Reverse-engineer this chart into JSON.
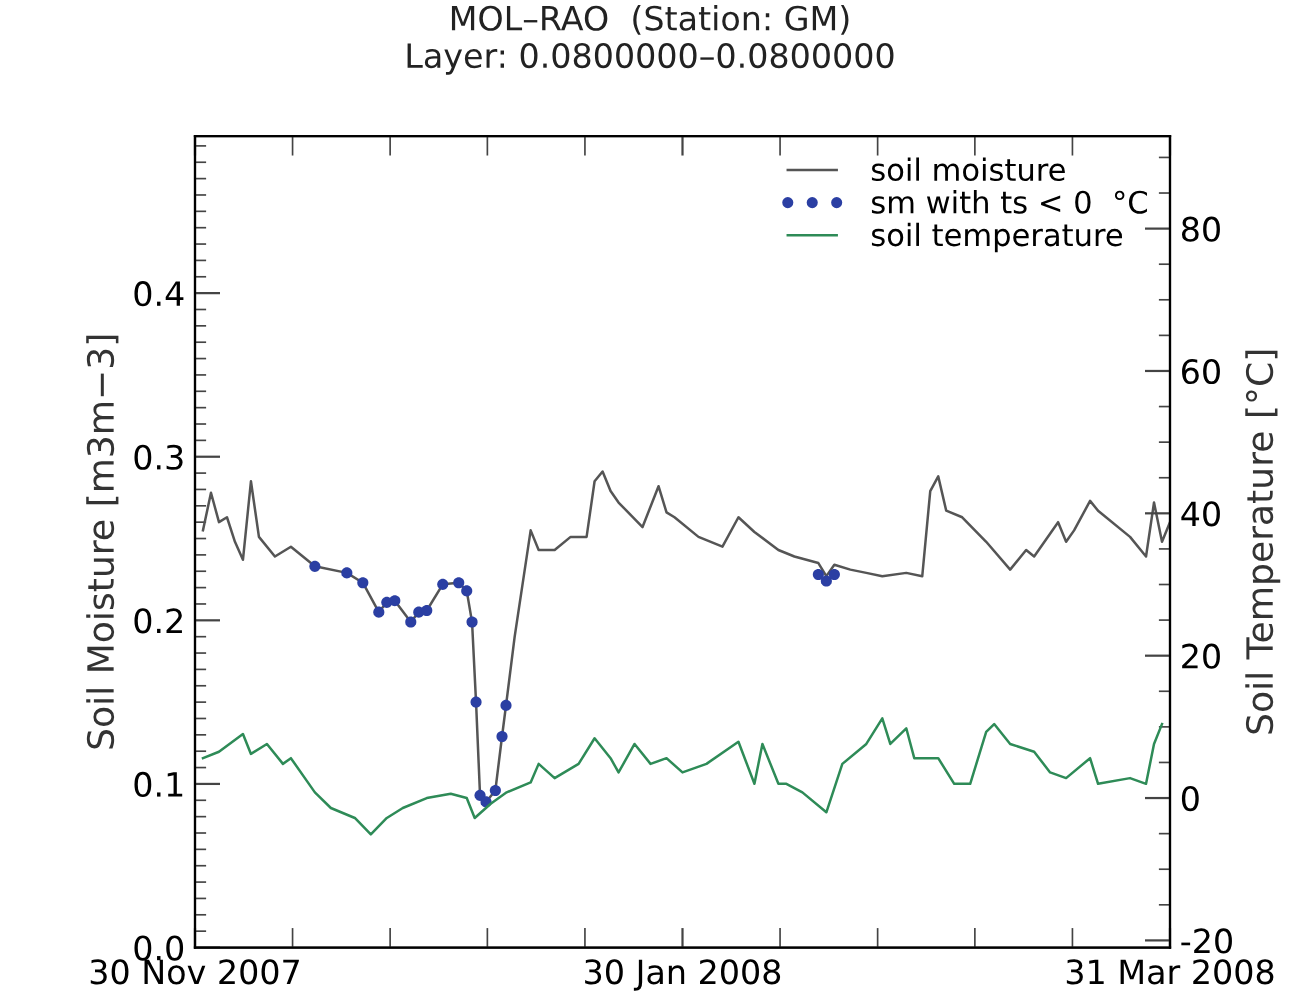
{
  "chart_data": {
    "type": "line",
    "title": "MOL–RAO  (Station: GM)",
    "subtitle": "Layer: 0.0800000–0.0800000",
    "ylabel": "Soil Moisture [m3m−3]",
    "y2label": "Soil Temperature [°C]",
    "xlim": [
      "2007-11-30",
      "2008-03-31"
    ],
    "xticks": [
      {
        "value": "2007-11-30",
        "label": "30 Nov 2007"
      },
      {
        "value": "2007-12-12T05:00",
        "label": null
      },
      {
        "value": "2007-12-24T10:00",
        "label": null
      },
      {
        "value": "2008-01-05T14:00",
        "label": null
      },
      {
        "value": "2008-01-17T19:00",
        "label": null
      },
      {
        "value": "2008-01-30",
        "label": "30 Jan 2008"
      },
      {
        "value": "2008-02-11T05:00",
        "label": null
      },
      {
        "value": "2008-02-23T10:00",
        "label": null
      },
      {
        "value": "2008-03-06T14:00",
        "label": null
      },
      {
        "value": "2008-03-18T19:00",
        "label": null
      },
      {
        "value": "2008-03-31",
        "label": "31 Mar 2008"
      }
    ],
    "ylim": [
      0,
      0.496
    ],
    "yticks": [
      {
        "value": 0,
        "label": "0.0"
      },
      {
        "value": 0.1,
        "label": "0.1"
      },
      {
        "value": 0.2,
        "label": "0.2"
      },
      {
        "value": 0.3,
        "label": "0.3"
      },
      {
        "value": 0.4,
        "label": "0.4"
      },
      {
        "value": 0.01,
        "label": null
      },
      {
        "value": 0.02,
        "label": null
      },
      {
        "value": 0.03,
        "label": null
      },
      {
        "value": 0.04,
        "label": null
      },
      {
        "value": 0.05,
        "label": null
      },
      {
        "value": 0.06,
        "label": null
      },
      {
        "value": 0.07,
        "label": null
      },
      {
        "value": 0.08,
        "label": null
      },
      {
        "value": 0.09,
        "label": null
      },
      {
        "value": 0.11,
        "label": null
      },
      {
        "value": 0.12,
        "label": null
      },
      {
        "value": 0.13,
        "label": null
      },
      {
        "value": 0.14,
        "label": null
      },
      {
        "value": 0.15,
        "label": null
      },
      {
        "value": 0.16,
        "label": null
      },
      {
        "value": 0.17,
        "label": null
      },
      {
        "value": 0.18,
        "label": null
      },
      {
        "value": 0.19,
        "label": null
      },
      {
        "value": 0.21,
        "label": null
      },
      {
        "value": 0.22,
        "label": null
      },
      {
        "value": 0.23,
        "label": null
      },
      {
        "value": 0.24,
        "label": null
      },
      {
        "value": 0.25,
        "label": null
      },
      {
        "value": 0.26,
        "label": null
      },
      {
        "value": 0.27,
        "label": null
      },
      {
        "value": 0.28,
        "label": null
      },
      {
        "value": 0.29,
        "label": null
      },
      {
        "value": 0.31,
        "label": null
      },
      {
        "value": 0.32,
        "label": null
      },
      {
        "value": 0.33,
        "label": null
      },
      {
        "value": 0.34,
        "label": null
      },
      {
        "value": 0.35,
        "label": null
      },
      {
        "value": 0.36,
        "label": null
      },
      {
        "value": 0.37,
        "label": null
      },
      {
        "value": 0.38,
        "label": null
      },
      {
        "value": 0.39,
        "label": null
      },
      {
        "value": 0.41,
        "label": null
      },
      {
        "value": 0.42,
        "label": null
      },
      {
        "value": 0.43,
        "label": null
      },
      {
        "value": 0.44,
        "label": null
      },
      {
        "value": 0.45,
        "label": null
      },
      {
        "value": 0.46,
        "label": null
      },
      {
        "value": 0.47,
        "label": null
      },
      {
        "value": 0.48,
        "label": null
      },
      {
        "value": 0.49,
        "label": null
      }
    ],
    "y2lim": [
      -21,
      93
    ],
    "y2ticks": [
      -20,
      0,
      20,
      40,
      60,
      80,
      {
        "value": -15,
        "label": null
      },
      {
        "value": -10,
        "label": null
      },
      {
        "value": -5,
        "label": null
      },
      {
        "value": 5,
        "label": null
      },
      {
        "value": 10,
        "label": null
      },
      {
        "value": 15,
        "label": null
      },
      {
        "value": 25,
        "label": null
      },
      {
        "value": 30,
        "label": null
      },
      {
        "value": 35,
        "label": null
      },
      {
        "value": 45,
        "label": null
      },
      {
        "value": 50,
        "label": null
      },
      {
        "value": 55,
        "label": null
      },
      {
        "value": 65,
        "label": null
      },
      {
        "value": 70,
        "label": null
      },
      {
        "value": 75,
        "label": null
      },
      {
        "value": 85,
        "label": null
      },
      {
        "value": 90,
        "label": null
      }
    ],
    "grid": false,
    "legend": "top right",
    "series": [
      {
        "name": "soil moisture",
        "color": "#555555",
        "x": [
          "2007-12-01",
          "2007-12-02",
          "2007-12-03",
          "2007-12-04",
          "2007-12-05",
          "2007-12-06",
          "2007-12-07",
          "2007-12-08",
          "2007-12-10",
          "2007-12-12",
          "2007-12-13",
          "2007-12-15",
          "2007-12-19",
          "2007-12-21",
          "2007-12-23",
          "2007-12-24",
          "2007-12-25",
          "2007-12-27",
          "2007-12-28",
          "2007-12-29",
          "2007-12-31",
          "2008-01-02",
          "2008-01-03",
          "2008-01-03T16:00",
          "2008-01-04T04:00",
          "2008-01-04T16:00",
          "2008-01-05T10:00",
          "2008-01-06T14:00",
          "2008-01-07T10:00",
          "2008-01-07T22:00",
          "2008-01-09",
          "2008-01-11",
          "2008-01-12",
          "2008-01-14",
          "2008-01-16",
          "2008-01-18",
          "2008-01-19",
          "2008-01-20",
          "2008-01-21",
          "2008-01-22",
          "2008-01-25",
          "2008-01-27",
          "2008-01-28",
          "2008-01-29",
          "2008-02-01",
          "2008-02-04",
          "2008-02-06",
          "2008-02-08",
          "2008-02-11",
          "2008-02-13",
          "2008-02-16",
          "2008-02-17",
          "2008-02-18",
          "2008-02-20",
          "2008-02-22",
          "2008-02-24",
          "2008-02-27",
          "2008-02-29",
          "2008-03-01",
          "2008-03-02",
          "2008-03-03",
          "2008-03-05",
          "2008-03-08",
          "2008-03-11",
          "2008-03-13",
          "2008-03-14",
          "2008-03-17",
          "2008-03-18",
          "2008-03-19",
          "2008-03-21",
          "2008-03-22",
          "2008-03-26",
          "2008-03-28",
          "2008-03-29",
          "2008-03-30",
          "2008-03-31"
        ],
        "values": [
          0.255,
          0.278,
          0.26,
          0.263,
          0.248,
          0.237,
          0.285,
          0.251,
          0.239,
          0.245,
          0.241,
          0.233,
          0.229,
          0.223,
          0.205,
          0.211,
          0.212,
          0.199,
          0.205,
          0.206,
          0.222,
          0.223,
          0.218,
          0.199,
          0.15,
          0.093,
          0.089,
          0.096,
          0.129,
          0.148,
          0.19,
          0.255,
          0.243,
          0.243,
          0.251,
          0.251,
          0.285,
          0.291,
          0.279,
          0.272,
          0.257,
          0.282,
          0.266,
          0.263,
          0.251,
          0.245,
          0.263,
          0.254,
          0.243,
          0.239,
          0.235,
          0.227,
          0.234,
          0.231,
          0.229,
          0.227,
          0.229,
          0.227,
          0.279,
          0.288,
          0.267,
          0.263,
          0.248,
          0.231,
          0.243,
          0.239,
          0.26,
          0.248,
          0.255,
          0.273,
          0.267,
          0.251,
          0.239,
          0.272,
          0.248,
          0.26
        ]
      },
      {
        "name": "sm with ts < 0  °C",
        "type": "scatter",
        "marker": "circle",
        "color": "#2b3fa3",
        "x": [
          "2007-12-15",
          "2007-12-19",
          "2007-12-21",
          "2007-12-23",
          "2007-12-24",
          "2007-12-25",
          "2007-12-27",
          "2007-12-28",
          "2007-12-29",
          "2007-12-31",
          "2008-01-02",
          "2008-01-03",
          "2008-01-03T16:00",
          "2008-01-04T04:00",
          "2008-01-04T16:00",
          "2008-01-05T10:00",
          "2008-01-06T14:00",
          "2008-01-07T10:00",
          "2008-01-07T22:00",
          "2008-02-16",
          "2008-02-17",
          "2008-02-18"
        ],
        "values": [
          0.233,
          0.229,
          0.223,
          0.205,
          0.211,
          0.212,
          0.199,
          0.205,
          0.206,
          0.222,
          0.223,
          0.218,
          0.199,
          0.15,
          0.093,
          0.089,
          0.096,
          0.129,
          0.148,
          0.228,
          0.224,
          0.228
        ]
      },
      {
        "name": "soil temperature",
        "axis": "y2",
        "color": "#2e8b57",
        "x": [
          "2007-12-01",
          "2007-12-03",
          "2007-12-06",
          "2007-12-07",
          "2007-12-09",
          "2007-12-11",
          "2007-12-12",
          "2007-12-15",
          "2007-12-17",
          "2007-12-20",
          "2007-12-22",
          "2007-12-24",
          "2007-12-26",
          "2007-12-29",
          "2008-01-01",
          "2008-01-03",
          "2008-01-04",
          "2008-01-06",
          "2008-01-08",
          "2008-01-11",
          "2008-01-12",
          "2008-01-14",
          "2008-01-17",
          "2008-01-19",
          "2008-01-21",
          "2008-01-22",
          "2008-01-24",
          "2008-01-26",
          "2008-01-28",
          "2008-01-30",
          "2008-02-02",
          "2008-02-06",
          "2008-02-08",
          "2008-02-09",
          "2008-02-11",
          "2008-02-12",
          "2008-02-14",
          "2008-02-17",
          "2008-02-19",
          "2008-02-22",
          "2008-02-24",
          "2008-02-25",
          "2008-02-27",
          "2008-02-28",
          "2008-03-02",
          "2008-03-04",
          "2008-03-06",
          "2008-03-08",
          "2008-03-09",
          "2008-03-11",
          "2008-03-14",
          "2008-03-16",
          "2008-03-18",
          "2008-03-21",
          "2008-03-22",
          "2008-03-26",
          "2008-03-28",
          "2008-03-29",
          "2008-03-30"
        ],
        "values": [
          5.6,
          6.5,
          9.0,
          6.2,
          7.6,
          4.8,
          5.6,
          0.8,
          -1.4,
          -2.8,
          -5.1,
          -2.8,
          -1.4,
          0,
          0.6,
          0,
          -2.8,
          -0.8,
          0.8,
          2.2,
          4.8,
          2.8,
          4.8,
          8.4,
          5.6,
          3.6,
          7.6,
          4.8,
          5.6,
          3.6,
          4.8,
          7.9,
          2.0,
          7.6,
          2.0,
          2.0,
          0.8,
          -2.0,
          4.8,
          7.6,
          11.2,
          7.6,
          9.8,
          5.6,
          5.6,
          2.0,
          2.0,
          9.3,
          10.4,
          7.6,
          6.5,
          3.6,
          2.8,
          5.6,
          2.0,
          2.8,
          2.0,
          7.6,
          10.4
        ]
      }
    ]
  }
}
